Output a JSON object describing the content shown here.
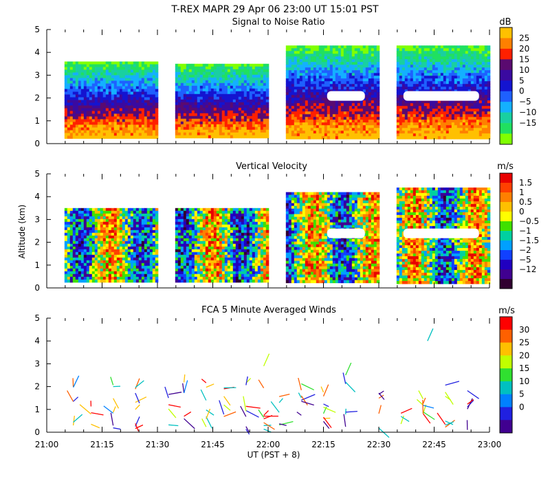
{
  "figure": {
    "title": "T-REX   MAPR 29 Apr 06   23:00 UT   15:01   PST",
    "xlabel": "UT  (PST + 8)"
  },
  "chart_data": [
    {
      "type": "heatmap",
      "title": "Signal to Noise Ratio",
      "ylabel": "",
      "xlim": [
        21.0,
        23.0
      ],
      "ylim": [
        0,
        5
      ],
      "x_ticks": [
        "21:00",
        "21:15",
        "21:30",
        "21:45",
        "22:00",
        "22:15",
        "22:30",
        "22:45",
        "23:00"
      ],
      "y_ticks": [
        "0",
        "1",
        "2",
        "3",
        "4",
        "5"
      ],
      "segments": [
        [
          21.08,
          21.5
        ],
        [
          21.58,
          22.0
        ],
        [
          22.08,
          22.5
        ],
        [
          22.58,
          23.0
        ]
      ],
      "top_altitudes_km": [
        3.6,
        3.5,
        4.3,
        4.3
      ],
      "bottom_altitude_km": 0.3,
      "colorbar": {
        "unit": "dB",
        "labels": [
          "25",
          "20",
          "15",
          "10",
          "5",
          "0",
          "−5",
          "−10",
          "−15"
        ],
        "colors": [
          "#ffc000",
          "#ff8000",
          "#ff2000",
          "#5a0a70",
          "#3a0aa0",
          "#1414d0",
          "#1e60ff",
          "#14b0ff",
          "#19d0a0",
          "#20e060",
          "#80ff00"
        ]
      }
    },
    {
      "type": "heatmap",
      "title": "Vertical Velocity",
      "ylabel": "Altitude (km)",
      "xlim": [
        21.0,
        23.0
      ],
      "ylim": [
        0,
        5
      ],
      "y_ticks": [
        "0",
        "1",
        "2",
        "3",
        "4",
        "5"
      ],
      "segments": [
        [
          21.08,
          21.5
        ],
        [
          21.58,
          22.0
        ],
        [
          22.08,
          22.5
        ],
        [
          22.58,
          23.0
        ]
      ],
      "top_altitudes_km": [
        3.5,
        3.5,
        4.2,
        4.4
      ],
      "bottom_altitude_km": 0.3,
      "colorbar": {
        "unit": "m/s",
        "labels": [
          "1.5",
          "1",
          "0.5",
          "0",
          "−0.5",
          "−1",
          "−1.5",
          "−2",
          "−5",
          "−12"
        ],
        "colors": [
          "#e80000",
          "#ff4000",
          "#ff8000",
          "#ffc000",
          "#ffff00",
          "#40e000",
          "#00d0a0",
          "#00a0ff",
          "#1040ff",
          "#2000c0",
          "#400090",
          "#300030"
        ]
      }
    },
    {
      "type": "scatter",
      "title": "FCA 5 Minute Averaged Winds",
      "ylabel": "",
      "xlim": [
        21.0,
        23.0
      ],
      "ylim": [
        0,
        5
      ],
      "y_ticks": [
        "0",
        "1",
        "2",
        "3",
        "4",
        "5"
      ],
      "vector_columns_ut": [
        21.12,
        21.2,
        21.3,
        21.4,
        21.55,
        21.62,
        21.72,
        21.8,
        21.9,
        21.98,
        22.05,
        22.15,
        22.25,
        22.35,
        22.5,
        22.6,
        22.7,
        22.8,
        22.9
      ],
      "colorbar": {
        "unit": "m/s",
        "labels": [
          "30",
          "25",
          "20",
          "15",
          "10",
          "5",
          "0"
        ],
        "colors": [
          "#ff0000",
          "#ff6000",
          "#ffc000",
          "#c0ff00",
          "#30e030",
          "#00c0c0",
          "#0080ff",
          "#2020e0",
          "#400090"
        ]
      }
    }
  ]
}
